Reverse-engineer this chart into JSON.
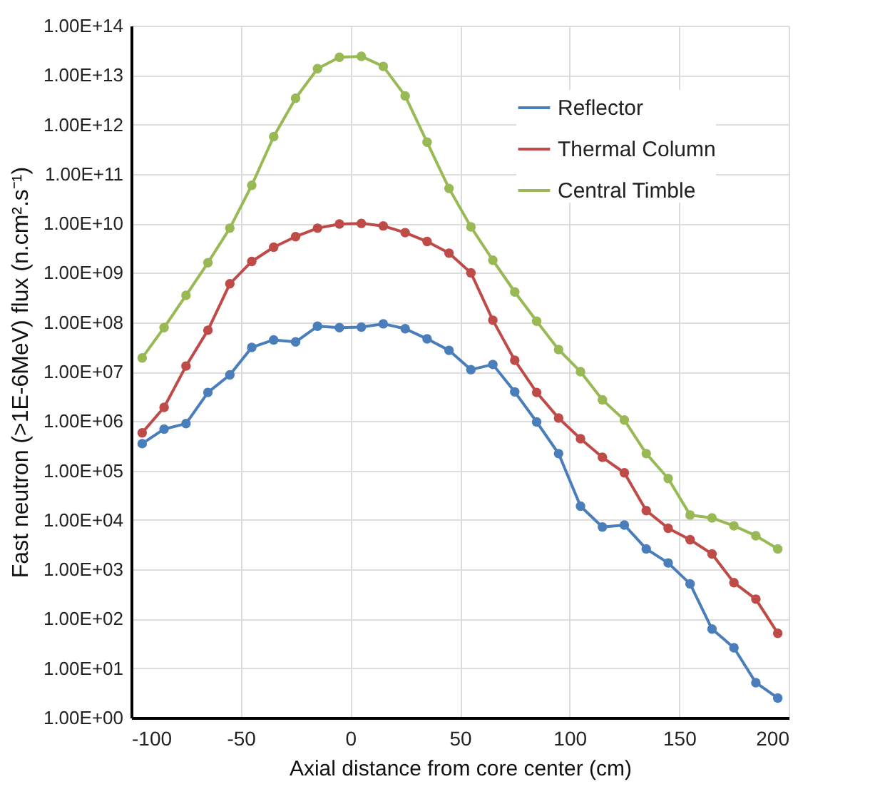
{
  "chart_data": {
    "type": "line",
    "xlabel": "Axial distance from core center (cm)",
    "ylabel": "Fast neutron  (>1E-6MeV)  flux (n.cm².s⁻¹)",
    "x": [
      -95,
      -85,
      -75,
      -65,
      -55,
      -45,
      -35,
      -25,
      -15,
      -5,
      5,
      15,
      25,
      35,
      45,
      55,
      65,
      75,
      85,
      95,
      105,
      115,
      125,
      135,
      145,
      155,
      165,
      175,
      185,
      195
    ],
    "series": [
      {
        "name": "Reflector",
        "color": "#4a7ebb",
        "values": [
          350000.0,
          690000.0,
          890000.0,
          3800000.0,
          8600000.0,
          31000000.0,
          44000000.0,
          40000000.0,
          83000000.0,
          78000000.0,
          80000000.0,
          93000000.0,
          74000000.0,
          46000000.0,
          27000000.0,
          11000000.0,
          14000000.0,
          3900000.0,
          960000.0,
          220000.0,
          19000.0,
          7200.0,
          7900.0,
          2600.0,
          1350.0,
          510,
          62,
          26,
          5.1,
          2.5
        ]
      },
      {
        "name": "Thermal Column",
        "color": "#be4b48",
        "values": [
          580000.0,
          1900000.0,
          13000000.0,
          69000000.0,
          600000000.0,
          1700000000.0,
          3300000000.0,
          5400000000.0,
          8000000000.0,
          9700000000.0,
          10000000000.0,
          8900000000.0,
          6500000000.0,
          4300000000.0,
          2500000000.0,
          1000000000.0,
          110000000.0,
          17000000.0,
          3800000.0,
          1150000.0,
          440000.0,
          185000.0,
          90000.0,
          15500.0,
          6800.0,
          4000.0,
          2050.0,
          540,
          250,
          51
        ]
      },
      {
        "name": "Central Timble",
        "color": "#98b954",
        "values": [
          19000000.0,
          78000000.0,
          350000000.0,
          1600000000.0,
          8000000000.0,
          59000000000.0,
          570000000000.0,
          3400000000000.0,
          13500000000000.0,
          23000000000000.0,
          24000000000000.0,
          15000000000000.0,
          3800000000000.0,
          440000000000.0,
          51000000000.0,
          8500000000.0,
          1800000000.0,
          410000000.0,
          105000000.0,
          28000000.0,
          10000000.0,
          2700000.0,
          1050000.0,
          220000.0,
          69000.0,
          12600.0,
          11000.0,
          7600.0,
          4800.0,
          2600.0
        ]
      }
    ],
    "xlim": [
      -100,
      200
    ],
    "xticks": [
      -100,
      -50,
      0,
      50,
      100,
      150,
      200
    ],
    "ylim": [
      1,
      100000000000000.0
    ],
    "log": true,
    "yticks": [
      {
        "value": 1,
        "label": "1.00E+00"
      },
      {
        "value": 10,
        "label": "1.00E+01"
      },
      {
        "value": 100,
        "label": "1.00E+02"
      },
      {
        "value": 1000,
        "label": "1.00E+03"
      },
      {
        "value": 10000.0,
        "label": "1.00E+04"
      },
      {
        "value": 100000.0,
        "label": "1.00E+05"
      },
      {
        "value": 1000000.0,
        "label": "1.00E+06"
      },
      {
        "value": 10000000.0,
        "label": "1.00E+07"
      },
      {
        "value": 100000000.0,
        "label": "1.00E+08"
      },
      {
        "value": 1000000000.0,
        "label": "1.00E+09"
      },
      {
        "value": 10000000000.0,
        "label": "1.00E+10"
      },
      {
        "value": 100000000000.0,
        "label": "1.00E+11"
      },
      {
        "value": 1000000000000.0,
        "label": "1.00E+12"
      },
      {
        "value": 10000000000000.0,
        "label": "1.00E+13"
      },
      {
        "value": 100000000000000.0,
        "label": "1.00E+14"
      }
    ],
    "grid": true,
    "legend": "top right",
    "marker": "circle",
    "line_style": "solid"
  }
}
